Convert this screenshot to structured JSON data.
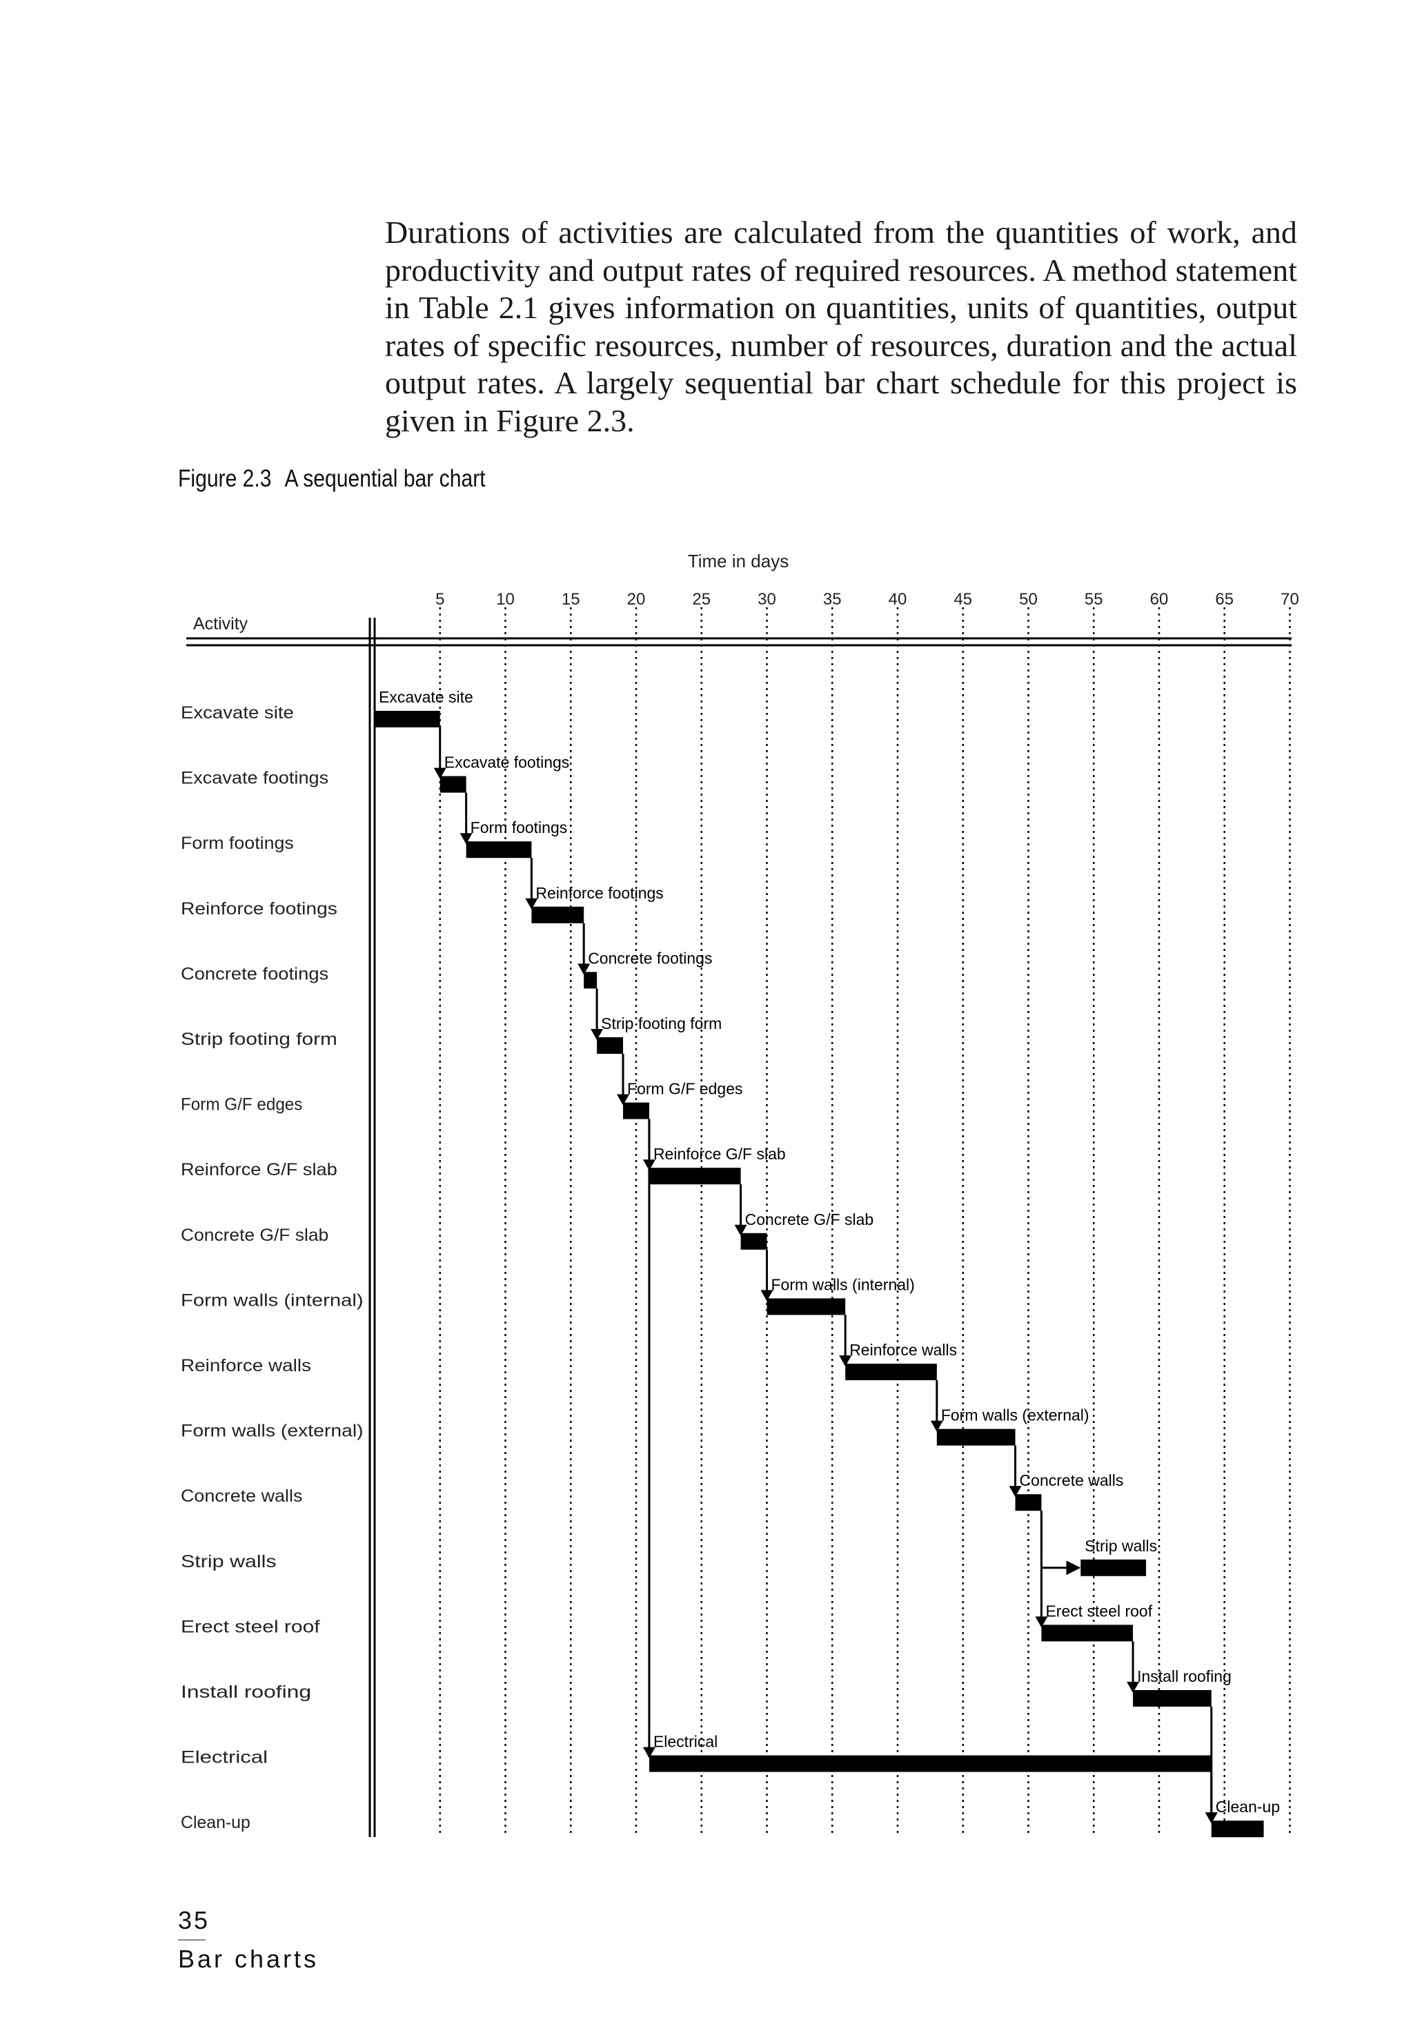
{
  "body_paragraph": "Durations of activities are calculated from the quantities of work, and productivity and output rates of required resources. A method statement in Table 2.1 gives information on quantities, units of quantities, output rates of specific resources, number of resources, duration and the actual output rates. A largely sequential bar chart schedule for this project is given in Figure 2.3.",
  "figure": {
    "number": "Figure 2.3",
    "title": "A sequential bar chart"
  },
  "footer": {
    "page_number": "35",
    "section": "Bar charts"
  },
  "chart_data": {
    "type": "gantt",
    "xlabel": "Time in days",
    "ylabel": "Activity",
    "xlim": [
      0,
      70
    ],
    "x_ticks": [
      5,
      10,
      15,
      20,
      25,
      30,
      35,
      40,
      45,
      50,
      55,
      60,
      65,
      70
    ],
    "grid": true,
    "activities": [
      {
        "name": "Excavate site",
        "label": "Excavate site",
        "start": 0,
        "end": 5,
        "deps": []
      },
      {
        "name": "Excavate footings",
        "label": "Excavate footings",
        "start": 5,
        "end": 7,
        "deps": [
          0
        ]
      },
      {
        "name": "Form footings",
        "label": "Form footings",
        "start": 7,
        "end": 12,
        "deps": [
          1
        ]
      },
      {
        "name": "Reinforce footings",
        "label": "Reinforce footings",
        "start": 12,
        "end": 16,
        "deps": [
          2
        ]
      },
      {
        "name": "Concrete footings",
        "label": "Concrete footings",
        "start": 16,
        "end": 17,
        "deps": [
          3
        ]
      },
      {
        "name": "Strip footing form",
        "label": "Strip footing form",
        "start": 17,
        "end": 19,
        "deps": [
          4
        ]
      },
      {
        "name": "Form G/F edges",
        "label": "Form G/F edges",
        "start": 19,
        "end": 21,
        "deps": [
          5
        ]
      },
      {
        "name": "Reinforce G/F slab",
        "label": "Reinforce G/F slab",
        "start": 21,
        "end": 28,
        "deps": [
          6
        ]
      },
      {
        "name": "Concrete G/F slab",
        "label": "Concrete G/F slab",
        "start": 28,
        "end": 30,
        "deps": [
          7
        ]
      },
      {
        "name": "Form walls (internal)",
        "label": "Form walls (internal)",
        "start": 30,
        "end": 36,
        "deps": [
          8
        ]
      },
      {
        "name": "Reinforce walls",
        "label": "Reinforce walls",
        "start": 36,
        "end": 43,
        "deps": [
          9
        ]
      },
      {
        "name": "Form walls (external)",
        "label": "Form walls (external)",
        "start": 43,
        "end": 49,
        "deps": [
          10
        ]
      },
      {
        "name": "Concrete walls",
        "label": "Concrete walls",
        "start": 49,
        "end": 51,
        "deps": [
          11
        ]
      },
      {
        "name": "Strip walls",
        "label": "Strip walls",
        "start": 54,
        "end": 59,
        "deps": [
          12
        ]
      },
      {
        "name": "Erect steel roof",
        "label": "Erect steel roof",
        "start": 51,
        "end": 58,
        "deps": [
          12
        ]
      },
      {
        "name": "Install roofing",
        "label": "Install roofing",
        "start": 58,
        "end": 64,
        "deps": [
          14
        ]
      },
      {
        "name": "Electrical",
        "label": "Electrical",
        "start": 21,
        "end": 64,
        "deps": [
          6
        ]
      },
      {
        "name": "Clean-up",
        "label": "Clean-up",
        "start": 64,
        "end": 68,
        "deps": [
          15,
          16
        ]
      }
    ]
  }
}
